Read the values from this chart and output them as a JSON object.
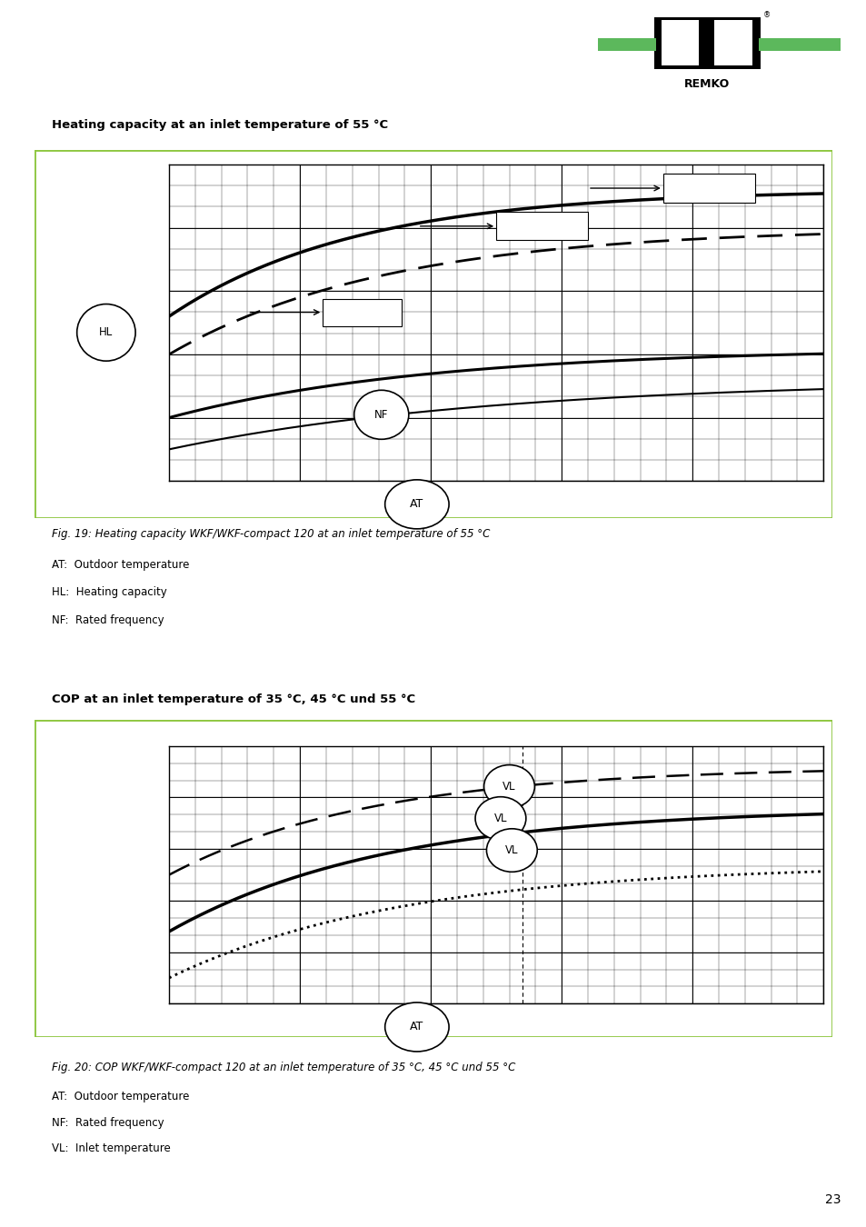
{
  "page_title": "Heating capacity at an inlet temperature of 55 °C",
  "section2_title": "COP at an inlet temperature of 35 °C, 45 °C und 55 °C",
  "fig1_caption": "Fig. 19: Heating capacity WKF/WKF-compact 120 at an inlet temperature of 55 °C",
  "fig1_legend": [
    "AT:  Outdoor temperature",
    "HL:  Heating capacity",
    "NF:  Rated frequency"
  ],
  "fig2_caption": "Fig. 20: COP WKF/WKF-compact 120 at an inlet temperature of 35 °C, 45 °C und 55 °C",
  "fig2_legend": [
    "AT:  Outdoor temperature",
    "NF:  Rated frequency",
    "VL:  Inlet temperature"
  ],
  "box_color": "#8dc63f",
  "background": "#ffffff",
  "page_number": "23"
}
